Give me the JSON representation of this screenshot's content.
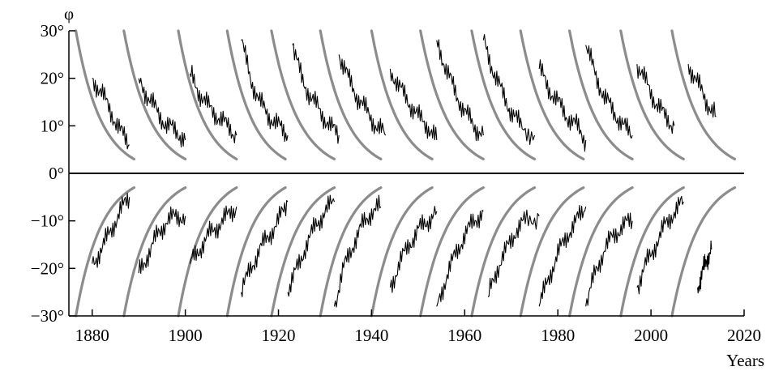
{
  "chart_data": {
    "type": "line",
    "title": "",
    "xlabel": "Years",
    "ylabel": "φ",
    "xlim": [
      1875,
      2020
    ],
    "ylim": [
      -30,
      30
    ],
    "x_ticks": [
      1880,
      1900,
      1920,
      1940,
      1960,
      1980,
      2000,
      2020
    ],
    "x_tick_labels": [
      "1880",
      "1900",
      "1920",
      "1940",
      "1960",
      "1980",
      "2000",
      "2020"
    ],
    "y_ticks": [
      30,
      20,
      10,
      0,
      -10,
      -20,
      -30
    ],
    "y_tick_labels": [
      "30°",
      "20°",
      "10°",
      "0°",
      "−10°",
      "−20°",
      "−30°"
    ],
    "grid": false,
    "legend": "none",
    "colors": {
      "model": "#8c8c8c",
      "observed": "#000000",
      "axis": "#000000"
    },
    "series": [
      {
        "kind": "model",
        "cycles": [
          {
            "start": 1876.5,
            "end": 1889.0
          },
          {
            "start": 1886.8,
            "end": 1900.0
          },
          {
            "start": 1898.5,
            "end": 1911.0
          },
          {
            "start": 1909.0,
            "end": 1921.5
          },
          {
            "start": 1918.5,
            "end": 1932.0
          },
          {
            "start": 1929.0,
            "end": 1942.0
          },
          {
            "start": 1940.0,
            "end": 1953.0
          },
          {
            "start": 1950.5,
            "end": 1964.0
          },
          {
            "start": 1961.5,
            "end": 1975.0
          },
          {
            "start": 1972.0,
            "end": 1985.5
          },
          {
            "start": 1982.5,
            "end": 1996.0
          },
          {
            "start": 1993.5,
            "end": 2007.0
          },
          {
            "start": 2004.5,
            "end": 2018.0
          }
        ]
      },
      {
        "kind": "observed",
        "cycles": [
          {
            "hemisphere": "north",
            "x": [
              1880,
              1882,
              1884,
              1886,
              1888
            ],
            "y": [
              20,
              17,
              13,
              9,
              6
            ]
          },
          {
            "hemisphere": "north",
            "x": [
              1890,
              1892,
              1894,
              1896,
              1898,
              1900
            ],
            "y": [
              20,
              16,
              13,
              10,
              9,
              7
            ]
          },
          {
            "hemisphere": "north",
            "x": [
              1901,
              1903,
              1905,
              1907,
              1909,
              1911
            ],
            "y": [
              21,
              17,
              14,
              12,
              10,
              8
            ]
          },
          {
            "hemisphere": "north",
            "x": [
              1912,
              1914,
              1916,
              1918,
              1920,
              1922
            ],
            "y": [
              28,
              20,
              15,
              12,
              10,
              8
            ]
          },
          {
            "hemisphere": "north",
            "x": [
              1923,
              1925,
              1927,
              1929,
              1931,
              1933
            ],
            "y": [
              27,
              20,
              16,
              13,
              10,
              8
            ]
          },
          {
            "hemisphere": "north",
            "x": [
              1933,
              1935,
              1937,
              1939,
              1941,
              1943
            ],
            "y": [
              25,
              20,
              16,
              13,
              10,
              8
            ]
          },
          {
            "hemisphere": "north",
            "x": [
              1944,
              1946,
              1948,
              1950,
              1952,
              1954
            ],
            "y": [
              22,
              18,
              15,
              12,
              10,
              7
            ]
          },
          {
            "hemisphere": "north",
            "x": [
              1954,
              1956,
              1958,
              1960,
              1962,
              1964
            ],
            "y": [
              28,
              22,
              17,
              13,
              10,
              8
            ]
          },
          {
            "hemisphere": "north",
            "x": [
              1964,
              1966,
              1968,
              1970,
              1972,
              1975
            ],
            "y": [
              28,
              22,
              17,
              13,
              10,
              8
            ]
          },
          {
            "hemisphere": "north",
            "x": [
              1976,
              1978,
              1980,
              1982,
              1984,
              1986
            ],
            "y": [
              22,
              18,
              15,
              12,
              10,
              7
            ]
          },
          {
            "hemisphere": "north",
            "x": [
              1986,
              1988,
              1990,
              1992,
              1994,
              1996
            ],
            "y": [
              27,
              21,
              16,
              13,
              10,
              8
            ]
          },
          {
            "hemisphere": "north",
            "x": [
              1997,
              1999,
              2001,
              2003,
              2005
            ],
            "y": [
              23,
              19,
              15,
              12,
              10
            ]
          },
          {
            "hemisphere": "north",
            "x": [
              2008,
              2010,
              2012,
              2014
            ],
            "y": [
              23,
              19,
              15,
              12
            ]
          },
          {
            "hemisphere": "south",
            "x": [
              1880,
              1882,
              1884,
              1886,
              1888
            ],
            "y": [
              -19,
              -16,
              -12,
              -8,
              -5
            ]
          },
          {
            "hemisphere": "south",
            "x": [
              1890,
              1892,
              1894,
              1896,
              1898,
              1900
            ],
            "y": [
              -21,
              -17,
              -13,
              -10,
              -9,
              -9
            ]
          },
          {
            "hemisphere": "south",
            "x": [
              1901,
              1903,
              1905,
              1907,
              1909,
              1911
            ],
            "y": [
              -19,
              -16,
              -13,
              -11,
              -9,
              -7
            ]
          },
          {
            "hemisphere": "south",
            "x": [
              1912,
              1914,
              1916,
              1918,
              1920,
              1922
            ],
            "y": [
              -25,
              -20,
              -16,
              -13,
              -10,
              -6
            ]
          },
          {
            "hemisphere": "south",
            "x": [
              1922,
              1924,
              1926,
              1928,
              1930,
              1932
            ],
            "y": [
              -25,
              -20,
              -15,
              -11,
              -8,
              -6
            ]
          },
          {
            "hemisphere": "south",
            "x": [
              1932,
              1934,
              1936,
              1938,
              1940,
              1942
            ],
            "y": [
              -28,
              -20,
              -15,
              -11,
              -8,
              -7
            ]
          },
          {
            "hemisphere": "south",
            "x": [
              1944,
              1946,
              1948,
              1950,
              1952,
              1954
            ],
            "y": [
              -24,
              -19,
              -15,
              -12,
              -10,
              -8
            ]
          },
          {
            "hemisphere": "south",
            "x": [
              1954,
              1956,
              1958,
              1960,
              1962,
              1964
            ],
            "y": [
              -28,
              -22,
              -17,
              -13,
              -10,
              -8
            ]
          },
          {
            "hemisphere": "south",
            "x": [
              1965,
              1967,
              1969,
              1971,
              1973,
              1976
            ],
            "y": [
              -26,
              -20,
              -16,
              -12,
              -10,
              -9
            ]
          },
          {
            "hemisphere": "south",
            "x": [
              1976,
              1978,
              1980,
              1982,
              1984,
              1986
            ],
            "y": [
              -28,
              -22,
              -17,
              -13,
              -10,
              -7
            ]
          },
          {
            "hemisphere": "south",
            "x": [
              1986,
              1988,
              1990,
              1992,
              1994,
              1996
            ],
            "y": [
              -28,
              -21,
              -16,
              -13,
              -11,
              -10
            ]
          },
          {
            "hemisphere": "south",
            "x": [
              1997,
              1999,
              2001,
              2003,
              2005,
              2007
            ],
            "y": [
              -24,
              -19,
              -15,
              -11,
              -8,
              -6
            ]
          },
          {
            "hemisphere": "south",
            "x": [
              2010,
              2011,
              2012,
              2013
            ],
            "y": [
              -24,
              -21,
              -18,
              -16
            ]
          }
        ]
      }
    ]
  }
}
